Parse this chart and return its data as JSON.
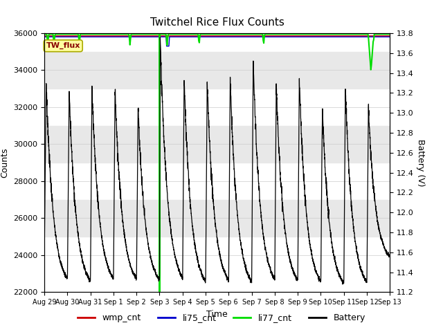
{
  "title": "Twitchel Rice Flux Counts",
  "xlabel": "Time",
  "ylabel_left": "Counts",
  "ylabel_right": "Battery (V)",
  "ylim_left": [
    22000,
    36000
  ],
  "ylim_right": [
    11.2,
    13.8
  ],
  "bg_color": "#ffffff",
  "plot_bg_color": "#ffffff",
  "band1": [
    33000,
    35000
  ],
  "band2": [
    29000,
    31000
  ],
  "band_color": "#e8e8e8",
  "xtick_labels": [
    "Aug 29",
    "Aug 30",
    "Aug 31",
    "Sep 1",
    "Sep 2",
    "Sep 3",
    "Sep 4",
    "Sep 5",
    "Sep 6",
    "Sep 7",
    "Sep 8",
    "Sep 9",
    "Sep 10",
    "Sep 11",
    "Sep 12",
    "Sep 13"
  ],
  "xtick_positions": [
    0,
    1,
    2,
    3,
    4,
    5,
    6,
    7,
    8,
    9,
    10,
    11,
    12,
    13,
    14,
    15
  ],
  "li77_color": "#00dd00",
  "li75_color": "#0000cc",
  "wmp_color": "#cc0000",
  "battery_color": "#000000",
  "annotation_box_facecolor": "#ffffa0",
  "annotation_box_edgecolor": "#aaaa00",
  "annotation_text": "TW_flux",
  "annotation_text_color": "#880000",
  "legend_entries": [
    "wmp_cnt",
    "li75_cnt",
    "li77_cnt",
    "Battery"
  ]
}
